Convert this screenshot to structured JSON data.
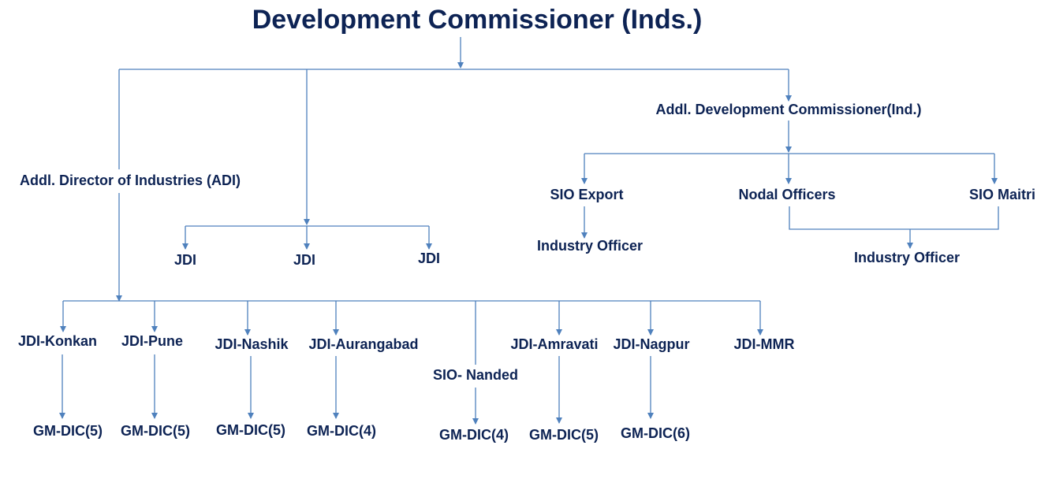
{
  "title": "Development Commissioner (Inds.)",
  "nodes": [
    {
      "label": "Addl. Development Commissioner(Ind.)"
    },
    {
      "label": "Addl. Director of Industries (ADI)"
    },
    {
      "label": "SIO Export"
    },
    {
      "label": "Nodal Officers"
    },
    {
      "label": "SIO Maitri"
    },
    {
      "label": "Industry Officer"
    },
    {
      "label": "Industry Officer"
    },
    {
      "label": "JDI"
    },
    {
      "label": "JDI"
    },
    {
      "label": "JDI"
    },
    {
      "label": "JDI-Konkan"
    },
    {
      "label": "JDI-Pune"
    },
    {
      "label": "JDI-Nashik"
    },
    {
      "label": "JDI-Aurangabad"
    },
    {
      "label": "SIO- Nanded"
    },
    {
      "label": "JDI-Amravati"
    },
    {
      "label": "JDI-Nagpur"
    },
    {
      "label": "JDI-MMR"
    },
    {
      "label": "GM-DIC(5)"
    },
    {
      "label": "GM-DIC(5)"
    },
    {
      "label": "GM-DIC(5)"
    },
    {
      "label": "GM-DIC(4)"
    },
    {
      "label": "GM-DIC(4)"
    },
    {
      "label": "GM-DIC(5)"
    },
    {
      "label": "GM-DIC(6)"
    }
  ]
}
